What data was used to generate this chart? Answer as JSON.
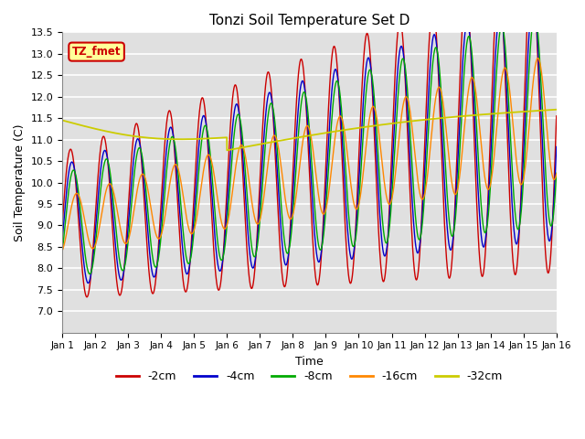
{
  "title": "Tonzi Soil Temperature Set D",
  "xlabel": "Time",
  "ylabel": "Soil Temperature (C)",
  "ylim": [
    6.5,
    13.5
  ],
  "xlim": [
    0,
    15
  ],
  "xtick_labels": [
    "Jan 1",
    "Jan 2",
    "Jan 3",
    "Jan 4",
    "Jan 5",
    "Jan 6",
    "Jan 7",
    "Jan 8",
    "Jan 9",
    "Jan 10",
    "Jan 11",
    "Jan 12",
    "Jan 13",
    "Jan 14",
    "Jan 15",
    "Jan 16"
  ],
  "ytick_values": [
    7.0,
    7.5,
    8.0,
    8.5,
    9.0,
    9.5,
    10.0,
    10.5,
    11.0,
    11.5,
    12.0,
    12.5,
    13.0,
    13.5
  ],
  "line_colors": [
    "#cc0000",
    "#0000cc",
    "#00aa00",
    "#ff8800",
    "#cccc00"
  ],
  "line_labels": [
    "-2cm",
    "-4cm",
    "-8cm",
    "-16cm",
    "-32cm"
  ],
  "annotation_text": "TZ_fmet",
  "annotation_bg": "#ffff99",
  "annotation_border": "#cc0000",
  "plot_bg": "#e0e0e0"
}
